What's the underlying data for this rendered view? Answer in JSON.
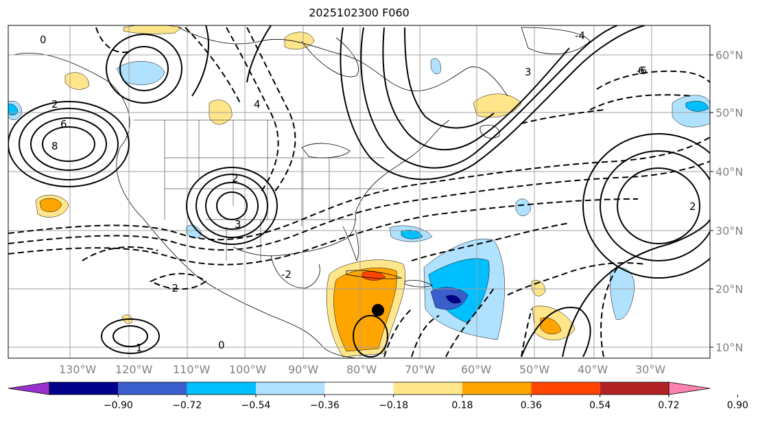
{
  "title": "2025102300 F060",
  "lat_labels": [
    "60°N",
    "50°N",
    "40°N",
    "30°N",
    "20°N",
    "10°N"
  ],
  "lon_labels": [
    "130°W",
    "120°W",
    "110°W",
    "100°W",
    "90°W",
    "80°W",
    "70°W",
    "60°W",
    "50°W",
    "40°W",
    "30°W"
  ],
  "colorbar": {
    "ticks": [
      "−0.90",
      "−0.72",
      "−0.54",
      "−0.36",
      "−0.18",
      "0.18",
      "0.36",
      "0.54",
      "0.72",
      "0.90"
    ],
    "colors": [
      "#9932cc",
      "#00008b",
      "#3a5fcd",
      "#00bfff",
      "#b0e2ff",
      "#ffffff",
      "#ffe68a",
      "#ffa500",
      "#ff4500",
      "#b22222",
      "#ff83b0"
    ]
  },
  "contour_labels": [
    "0",
    "2",
    "4",
    "6",
    "8",
    "-2",
    "-4",
    "-6",
    "2",
    "3",
    "1",
    "0",
    "-2",
    "2",
    "3",
    "6"
  ]
}
